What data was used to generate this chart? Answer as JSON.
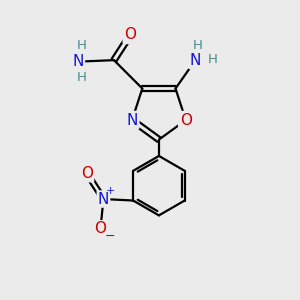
{
  "bg_color": "#ebebeb",
  "bond_color": "#000000",
  "bond_width": 1.6,
  "atom_colors": {
    "C": "#000000",
    "N": "#1414d4",
    "O": "#cc0000",
    "H": "#4a8a8a"
  },
  "font_size_atoms": 11,
  "font_size_H": 9.5,
  "font_size_charge": 8
}
